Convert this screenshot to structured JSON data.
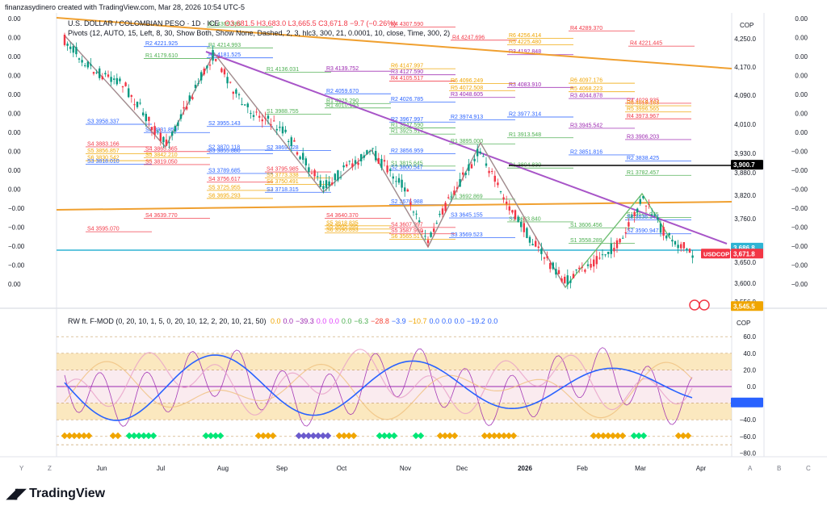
{
  "header": {
    "creator_line": "finanzasydinero created with TradingView.com, Mar 28, 2026 10:54 UTC-5"
  },
  "legend": {
    "symbol": "U.S. DOLLAR / COLOMBIAN PESO · 1D · ICE",
    "ohlc": "O3,681.5 H3,683.0 L3,665.5 C3,671.8 −9.7 (−0.26%)",
    "pivots": "Pivots (12, AUTO, 15, Left, 8, 30, Show Both, Show None, Dashed, 2, 3, hlc3, 300, 21, 0.0001, 10, close, Time, 300, 2)"
  },
  "indicator": {
    "name": "RW ft. F-MOD (0, 20, 10, 1, 5, 0, 20, 10, 12, 2, 20, 10, 21, 50)",
    "values": [
      {
        "text": "0.0",
        "color": "#f0a500"
      },
      {
        "text": "0.0",
        "color": "#9c27b0"
      },
      {
        "text": "−39.3",
        "color": "#9c27b0"
      },
      {
        "text": "0.0",
        "color": "#e040fb"
      },
      {
        "text": "0.0",
        "color": "#e040fb"
      },
      {
        "text": "0.0",
        "color": "#4caf50"
      },
      {
        "text": "−6.3",
        "color": "#4caf50"
      },
      {
        "text": "−28.8",
        "color": "#f44336"
      },
      {
        "text": "−3.9",
        "color": "#2962ff"
      },
      {
        "text": "−10.7",
        "color": "#f0a500"
      },
      {
        "text": "0.0",
        "color": "#2962ff"
      },
      {
        "text": "0.0",
        "color": "#2962ff"
      },
      {
        "text": "0.0",
        "color": "#2962ff"
      },
      {
        "text": "−19.2",
        "color": "#2962ff"
      },
      {
        "text": "0.0",
        "color": "#2962ff"
      }
    ]
  },
  "price_axis": {
    "currency": "COP",
    "ticks": [
      "4,250.0",
      "4,170.0",
      "4,090.0",
      "4,010.0",
      "3,930.0",
      "3,880.0",
      "3,820.0",
      "3,760.0",
      "3,650.0",
      "3,600.0",
      "3,556.0"
    ],
    "tick_values": [
      4250,
      4170,
      4090,
      4010,
      3930,
      3880,
      3820,
      3760,
      3650,
      3600,
      3556
    ],
    "badges": [
      {
        "text": "3,900.7",
        "value": 3900.7,
        "bg": "#000000"
      },
      {
        "text": "3,686.8",
        "value": 3686.8,
        "bg": "#2fb4d4"
      },
      {
        "text": "3,671.8",
        "value": 3671.8,
        "bg": "#f23645"
      },
      {
        "text": "3,545.5",
        "value": 3545.5,
        "bg": "#f0a500"
      }
    ],
    "symbol_badge": "USDCOP"
  },
  "left_axis_labels": [
    "0.00",
    "0.00",
    "0.00",
    "0.00",
    "0.00",
    "0.00",
    "0.00",
    "0.00",
    "0.00",
    "0.00",
    "−0.00",
    "−0.00",
    "−0.00",
    "−0.00",
    "0.00"
  ],
  "right_extra_labels": [
    "0.00",
    "0.00",
    "0.00",
    "0.00",
    "0.00",
    "0.00",
    "0.00",
    "−0.00",
    "−0.00",
    "−0.00",
    "−0.00",
    "−0.00",
    "−0.00",
    "−0.00",
    "−0.00"
  ],
  "indicator_axis": {
    "label": "COP",
    "ticks": [
      "60.0",
      "40.0",
      "20.0",
      "0.0",
      "−20.0",
      "−40.0",
      "−60.0",
      "−80.0"
    ],
    "tick_values": [
      60,
      40,
      20,
      0,
      -20,
      -40,
      -60,
      -80
    ]
  },
  "time_axis": {
    "labels": [
      "Jun",
      "Jul",
      "Aug",
      "Sep",
      "Oct",
      "Nov",
      "Dec",
      "2026",
      "Feb",
      "Mar",
      "Apr"
    ],
    "corner_letters": {
      "left_y": "Y",
      "left_z": "Z",
      "right_a": "A",
      "right_b": "B",
      "right_c": "C"
    }
  },
  "pivot_levels": [
    {
      "t": "R1",
      "v": "4309.385",
      "x": 258,
      "p": 4283,
      "c": "#4caf50"
    },
    {
      "t": "R4",
      "v": "4307.590",
      "x": 484,
      "p": 4283,
      "c": "#f23645"
    },
    {
      "t": "R4",
      "v": "4289.370",
      "x": 706,
      "p": 4272,
      "c": "#f23645"
    },
    {
      "t": "R6",
      "v": "4256.414",
      "x": 630,
      "p": 4251,
      "c": "#f0a500"
    },
    {
      "t": "R4",
      "v": "4247.696",
      "x": 560,
      "p": 4246,
      "c": "#f23645"
    },
    {
      "t": "R5",
      "v": "4225.480",
      "x": 630,
      "p": 4233,
      "c": "#f0a500"
    },
    {
      "t": "R4",
      "v": "4221.445",
      "x": 780,
      "p": 4229,
      "c": "#f23645"
    },
    {
      "t": "R2",
      "v": "4221.925",
      "x": 180,
      "p": 4228,
      "c": "#2962ff"
    },
    {
      "t": "R1",
      "v": "4214.993",
      "x": 258,
      "p": 4224,
      "c": "#4caf50"
    },
    {
      "t": "R3",
      "v": "4192.848",
      "x": 630,
      "p": 4205,
      "c": "#9c27b0"
    },
    {
      "t": "R2",
      "v": "4181.525",
      "x": 258,
      "p": 4196,
      "c": "#2962ff"
    },
    {
      "t": "R1",
      "v": "4179.610",
      "x": 180,
      "p": 4194,
      "c": "#4caf50"
    },
    {
      "t": "R6",
      "v": "4147.997",
      "x": 484,
      "p": 4165,
      "c": "#f0a500"
    },
    {
      "t": "R3",
      "v": "4139.752",
      "x": 404,
      "p": 4158,
      "c": "#9c27b0"
    },
    {
      "t": "R1",
      "v": "4136.031",
      "x": 330,
      "p": 4155,
      "c": "#4caf50"
    },
    {
      "t": "R3",
      "v": "4127.590",
      "x": 484,
      "p": 4148,
      "c": "#9c27b0"
    },
    {
      "t": "R4",
      "v": "4105.517",
      "x": 484,
      "p": 4130,
      "c": "#f23645"
    },
    {
      "t": "R6",
      "v": "4097.176",
      "x": 706,
      "p": 4124,
      "c": "#f0a500"
    },
    {
      "t": "R6",
      "v": "4096.249",
      "x": 558,
      "p": 4123,
      "c": "#f0a500"
    },
    {
      "t": "R3",
      "v": "4083.910",
      "x": 630,
      "p": 4112,
      "c": "#9c27b0"
    },
    {
      "t": "R5",
      "v": "4072.508",
      "x": 558,
      "p": 4103,
      "c": "#f0a500"
    },
    {
      "t": "R5",
      "v": "4068.223",
      "x": 706,
      "p": 4100,
      "c": "#f0a500"
    },
    {
      "t": "R2",
      "v": "4059.670",
      "x": 404,
      "p": 4094,
      "c": "#2962ff"
    },
    {
      "t": "R3",
      "v": "4048.605",
      "x": 558,
      "p": 4084,
      "c": "#9c27b0"
    },
    {
      "t": "R3",
      "v": "4044.878",
      "x": 706,
      "p": 4081,
      "c": "#9c27b0"
    },
    {
      "t": "R2",
      "v": "4026.785",
      "x": 484,
      "p": 4071,
      "c": "#2962ff"
    },
    {
      "t": "R4",
      "v": "4029.935",
      "x": 776,
      "p": 4068,
      "c": "#f23645"
    },
    {
      "t": "R1",
      "v": "4025.290",
      "x": 404,
      "p": 4067,
      "c": "#4caf50"
    },
    {
      "t": "R6",
      "v": "4019.163",
      "x": 776,
      "p": 4061,
      "c": "#f0a500"
    },
    {
      "t": "R1",
      "v": "4010.193",
      "x": 404,
      "p": 4055,
      "c": "#4caf50"
    },
    {
      "t": "R5",
      "v": "3996.565",
      "x": 776,
      "p": 4044,
      "c": "#f0a500"
    },
    {
      "t": "S1",
      "v": "3988.755",
      "x": 330,
      "p": 4038,
      "c": "#4caf50"
    },
    {
      "t": "R2",
      "v": "3977.314",
      "x": 630,
      "p": 4030,
      "c": "#2962ff"
    },
    {
      "t": "R4",
      "v": "3973.967",
      "x": 776,
      "p": 4025,
      "c": "#f23645"
    },
    {
      "t": "R2",
      "v": "3974.913",
      "x": 558,
      "p": 4022,
      "c": "#2962ff"
    },
    {
      "t": "R2",
      "v": "3967.997",
      "x": 484,
      "p": 4016,
      "c": "#2962ff"
    },
    {
      "t": "S3",
      "v": "3958.337",
      "x": 108,
      "p": 4010,
      "c": "#2962ff"
    },
    {
      "t": "S2",
      "v": "3955.143",
      "x": 258,
      "p": 4004,
      "c": "#2962ff"
    },
    {
      "t": "R1",
      "v": "3947.590",
      "x": 484,
      "p": 4000,
      "c": "#4caf50"
    },
    {
      "t": "R3",
      "v": "3945.542",
      "x": 706,
      "p": 3999,
      "c": "#9c27b0"
    },
    {
      "t": "S3",
      "v": "3931.858",
      "x": 180,
      "p": 3987,
      "c": "#2962ff"
    },
    {
      "t": "R1",
      "v": "3925.517",
      "x": 484,
      "p": 3983,
      "c": "#4caf50"
    },
    {
      "t": "R1",
      "v": "3913.548",
      "x": 630,
      "p": 3973,
      "c": "#4caf50"
    },
    {
      "t": "R3",
      "v": "3906.203",
      "x": 776,
      "p": 3968,
      "c": "#9c27b0"
    },
    {
      "t": "R1",
      "v": "3895.000",
      "x": 558,
      "p": 3956,
      "c": "#4caf50"
    },
    {
      "t": "S4",
      "v": "3883.166",
      "x": 108,
      "p": 3948,
      "c": "#f23645"
    },
    {
      "t": "S2",
      "v": "3870.118",
      "x": 258,
      "p": 3939,
      "c": "#2962ff"
    },
    {
      "t": "S2",
      "v": "3869.028",
      "x": 330,
      "p": 3938,
      "c": "#2962ff"
    },
    {
      "t": "S4",
      "v": "3865.365",
      "x": 180,
      "p": 3935,
      "c": "#f23645"
    },
    {
      "t": "S5",
      "v": "3856.857",
      "x": 108,
      "p": 3929,
      "c": "#f0a500"
    },
    {
      "t": "R2",
      "v": "3856.959",
      "x": 484,
      "p": 3929,
      "c": "#2962ff"
    },
    {
      "t": "S3",
      "v": "3855.880",
      "x": 258,
      "p": 3929,
      "c": "#2962ff"
    },
    {
      "t": "R2",
      "v": "3851.816",
      "x": 706,
      "p": 3926,
      "c": "#2962ff"
    },
    {
      "t": "S5",
      "v": "3842.210",
      "x": 180,
      "p": 3919,
      "c": "#f0a500"
    },
    {
      "t": "S6",
      "v": "3830.542",
      "x": 108,
      "p": 3911,
      "c": "#f0a500"
    },
    {
      "t": "R2",
      "v": "3838.425",
      "x": 776,
      "p": 3910,
      "c": "#2962ff"
    },
    {
      "t": "S3",
      "v": "3818.010",
      "x": 108,
      "p": 3902,
      "c": "#2962ff"
    },
    {
      "t": "S5",
      "v": "3819.050",
      "x": 180,
      "p": 3901,
      "c": "#f23645"
    },
    {
      "t": "S1",
      "v": "3815.645",
      "x": 484,
      "p": 3897,
      "c": "#4caf50"
    },
    {
      "t": "R1",
      "v": "3804.830",
      "x": 630,
      "p": 3892,
      "c": "#4caf50"
    },
    {
      "t": "S2",
      "v": "3800.547",
      "x": 484,
      "p": 3886,
      "c": "#2962ff"
    },
    {
      "t": "S4",
      "v": "3795.985",
      "x": 330,
      "p": 3882,
      "c": "#f23645"
    },
    {
      "t": "S3",
      "v": "3789.685",
      "x": 258,
      "p": 3878,
      "c": "#2962ff"
    },
    {
      "t": "R1",
      "v": "3782.457",
      "x": 776,
      "p": 3873,
      "c": "#4caf50"
    },
    {
      "t": "S5",
      "v": "3773.338",
      "x": 330,
      "p": 3866,
      "c": "#f0a500"
    },
    {
      "t": "S4",
      "v": "3756.617",
      "x": 258,
      "p": 3855,
      "c": "#f23645"
    },
    {
      "t": "S6",
      "v": "3750.491",
      "x": 330,
      "p": 3849,
      "c": "#f0a500"
    },
    {
      "t": "S5",
      "v": "3725.955",
      "x": 258,
      "p": 3833,
      "c": "#f0a500"
    },
    {
      "t": "S3",
      "v": "3718.315",
      "x": 330,
      "p": 3828,
      "c": "#2962ff"
    },
    {
      "t": "S6",
      "v": "3695.293",
      "x": 258,
      "p": 3812,
      "c": "#f0a500"
    },
    {
      "t": "S1",
      "v": "3692.869",
      "x": 558,
      "p": 3810,
      "c": "#4caf50"
    },
    {
      "t": "S2",
      "v": "3676.988",
      "x": 484,
      "p": 3796,
      "c": "#2962ff"
    },
    {
      "t": "S1",
      "v": "3646.915",
      "x": 776,
      "p": 3763,
      "c": "#4caf50"
    },
    {
      "t": "S3",
      "v": "3645.155",
      "x": 558,
      "p": 3762,
      "c": "#2962ff"
    },
    {
      "t": "S4",
      "v": "3640.370",
      "x": 404,
      "p": 3761,
      "c": "#f23645"
    },
    {
      "t": "S4",
      "v": "3639.770",
      "x": 180,
      "p": 3761,
      "c": "#f23645"
    },
    {
      "t": "S2",
      "v": "3636.143",
      "x": 776,
      "p": 3757,
      "c": "#2962ff"
    },
    {
      "t": "S1",
      "v": "3633.840",
      "x": 630,
      "p": 3752,
      "c": "#4caf50"
    },
    {
      "t": "S5",
      "v": "3618.835",
      "x": 404,
      "p": 3742,
      "c": "#f0a500"
    },
    {
      "t": "S4",
      "v": "3607.997",
      "x": 484,
      "p": 3738,
      "c": "#f23645"
    },
    {
      "t": "S1",
      "v": "3606.456",
      "x": 706,
      "p": 3737,
      "c": "#4caf50"
    },
    {
      "t": "S5",
      "v": "3605.395",
      "x": 404,
      "p": 3734,
      "c": "#f0a500"
    },
    {
      "t": "S4",
      "v": "3595.070",
      "x": 108,
      "p": 3727,
      "c": "#f23645"
    },
    {
      "t": "S6",
      "v": "3590.893",
      "x": 404,
      "p": 3724,
      "c": "#f0a500"
    },
    {
      "t": "S5",
      "v": "3587.990",
      "x": 484,
      "p": 3722,
      "c": "#f23645"
    },
    {
      "t": "S2",
      "v": "3590.947",
      "x": 776,
      "p": 3722,
      "c": "#2962ff"
    },
    {
      "t": "S3",
      "v": "3569.523",
      "x": 558,
      "p": 3712,
      "c": "#2962ff"
    },
    {
      "t": "S6",
      "v": "3565.517",
      "x": 484,
      "p": 3708,
      "c": "#f0a500"
    },
    {
      "t": "S1",
      "v": "3558.289",
      "x": 706,
      "p": 3698,
      "c": "#4caf50"
    }
  ]
}
